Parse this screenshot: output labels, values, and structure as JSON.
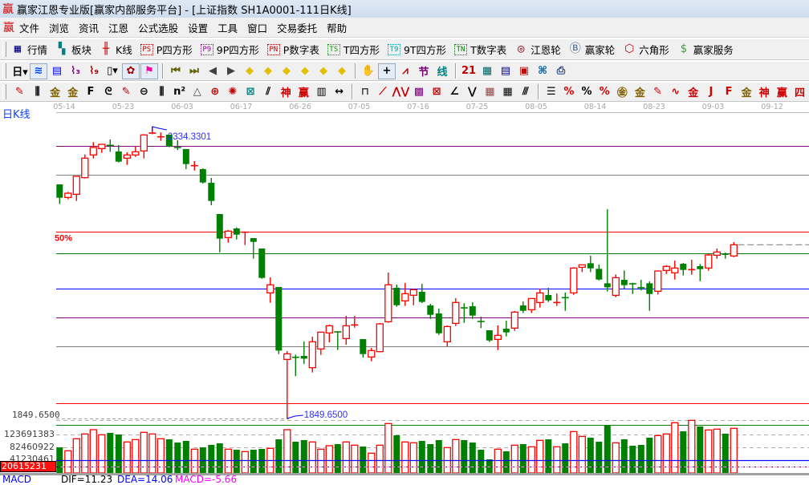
{
  "window": {
    "title": "赢家江恩专业版[赢家内部服务平台] - [上证指数  SH1A0001-111日K线]",
    "logo": "赢"
  },
  "menu": {
    "logo": "赢",
    "items": [
      "文件",
      "浏览",
      "资讯",
      "江恩",
      "公式选股",
      "设置",
      "工具",
      "窗口",
      "交易委托",
      "帮助"
    ]
  },
  "toolbar1": [
    {
      "icon": "quote-table-icon",
      "glyph": "▦",
      "color": "#000080",
      "label": "行情"
    },
    {
      "icon": "sector-blocks-icon",
      "glyph": "▚",
      "color": "#008080",
      "label": "板块"
    },
    {
      "icon": "candlestick-icon",
      "glyph": "╫",
      "color": "#d00000",
      "label": "K线"
    },
    {
      "icon": "ps-box-icon",
      "glyph": "PS",
      "color": "#c00000",
      "label": "P四方形"
    },
    {
      "icon": "p9-box-icon",
      "glyph": "P9",
      "color": "#a000a0",
      "label": "9P四方形"
    },
    {
      "icon": "pn-box-icon",
      "glyph": "PN",
      "color": "#c00000",
      "label": "P数字表"
    },
    {
      "icon": "ts-box-icon",
      "glyph": "TS",
      "color": "#00a000",
      "label": "T四方形"
    },
    {
      "icon": "t9-box-icon",
      "glyph": "T9",
      "color": "#00a0a0",
      "label": "9T四方形"
    },
    {
      "icon": "tn-box-icon",
      "glyph": "TN",
      "color": "#008000",
      "label": "T数字表"
    },
    {
      "icon": "gann-wheel-icon",
      "glyph": "◎",
      "color": "#800000",
      "label": "江恩轮"
    },
    {
      "icon": "big-wheel-icon",
      "glyph": "Ⓑ",
      "color": "#406080",
      "label": "赢家轮"
    },
    {
      "icon": "hexagon-icon",
      "glyph": "⬡",
      "color": "#c00000",
      "label": "六角形"
    },
    {
      "icon": "dollar-icon",
      "glyph": "$",
      "color": "#40a040",
      "label": "赢家服务"
    }
  ],
  "toolbar2": [
    {
      "icon": "period-day-dropdown-icon",
      "glyph": "日▾",
      "color": "#000"
    },
    {
      "icon": "wave-pattern-icon",
      "glyph": "≋",
      "color": "#0040ff",
      "active": true
    },
    {
      "icon": "notepad-icon",
      "glyph": "▤",
      "color": "#0000ff"
    },
    {
      "icon": "chart-3-icon",
      "glyph": "⌇₃",
      "color": "#800080"
    },
    {
      "icon": "chart-9-icon",
      "glyph": "⌇₉",
      "color": "#a00000"
    },
    {
      "icon": "candle-type-dropdown-icon",
      "glyph": "▯▾",
      "color": "#000"
    },
    {
      "icon": "pattern-sheet-icon",
      "glyph": "✿",
      "color": "#a00000",
      "active": true
    },
    {
      "icon": "flag-icon",
      "glyph": "⚑",
      "color": "#ff00a0",
      "active": true
    },
    {
      "sep": true
    },
    {
      "icon": "first-bar-icon",
      "glyph": "⏮",
      "color": "#606000"
    },
    {
      "icon": "last-bar-icon",
      "glyph": "⏭",
      "color": "#606000"
    },
    {
      "icon": "previous-icon",
      "glyph": "◀",
      "color": "#404040"
    },
    {
      "icon": "next-icon",
      "glyph": "▶",
      "color": "#404040"
    },
    {
      "icon": "diamond-left-icon",
      "glyph": "◆",
      "color": "#e0c000"
    },
    {
      "icon": "diamond-right-icon",
      "glyph": "◆",
      "color": "#e0c000"
    },
    {
      "icon": "diamond-horizontal-icon",
      "glyph": "◆",
      "color": "#e0c000"
    },
    {
      "icon": "diamond-collapse-icon",
      "glyph": "◆",
      "color": "#e0c000"
    },
    {
      "icon": "diamond-expand-icon",
      "glyph": "◆",
      "color": "#e0c000"
    },
    {
      "icon": "diamond-vertical-icon",
      "glyph": "◆",
      "color": "#e0c000"
    },
    {
      "sep": true
    },
    {
      "icon": "hand-icon",
      "glyph": "✋",
      "color": "#000"
    },
    {
      "icon": "crosshair-icon",
      "glyph": "+",
      "color": "#000",
      "active": true
    },
    {
      "icon": "draw-line-icon",
      "glyph": "⩘",
      "color": "#c00000"
    },
    {
      "icon": "jie-icon",
      "glyph": "节",
      "color": "#800080"
    },
    {
      "icon": "xian-icon",
      "glyph": "线",
      "color": "#008080"
    },
    {
      "sep": true
    },
    {
      "icon": "calendar-icon",
      "glyph": "21",
      "color": "#c00000"
    },
    {
      "icon": "calculator-icon",
      "glyph": "▦",
      "color": "#006060"
    },
    {
      "icon": "notes-icon",
      "glyph": "▤",
      "color": "#000080"
    },
    {
      "icon": "save-icon",
      "glyph": "▣",
      "color": "#c00000"
    },
    {
      "icon": "network-icon",
      "glyph": "⌘",
      "color": "#0060a0"
    },
    {
      "icon": "printer-icon",
      "glyph": "⎙",
      "color": "#204080"
    }
  ],
  "toolbar3": [
    {
      "icon": "pen-icon",
      "glyph": "✎",
      "color": "#c00000"
    },
    {
      "icon": "vertical-lines-icon",
      "glyph": "⫼",
      "color": "#000"
    },
    {
      "icon": "gold-lines-icon",
      "glyph": "金",
      "color": "#806000"
    },
    {
      "icon": "gold-lines-2-icon",
      "glyph": "金",
      "color": "#806000"
    },
    {
      "icon": "f-lines-icon",
      "glyph": "F",
      "color": "#000"
    },
    {
      "icon": "spiral-lines-icon",
      "glyph": "ᘓ",
      "color": "#000"
    },
    {
      "icon": "pen-ruler-icon",
      "glyph": "✎",
      "color": "#c00000"
    },
    {
      "icon": "circle-ruler-icon",
      "glyph": "⊖",
      "color": "#000"
    },
    {
      "icon": "parallel-lines-icon",
      "glyph": "⫼",
      "color": "#000"
    },
    {
      "icon": "n-squared-icon",
      "glyph": "n²",
      "color": "#000"
    },
    {
      "icon": "triangle-icon",
      "glyph": "△",
      "color": "#404040"
    },
    {
      "icon": "circle-target-icon",
      "glyph": "⊕",
      "color": "#c00000"
    },
    {
      "icon": "radial-web-icon",
      "glyph": "✺",
      "color": "#c00000"
    },
    {
      "icon": "square-web-icon",
      "glyph": "⊠",
      "color": "#008080"
    },
    {
      "icon": "slant-lines-icon",
      "glyph": "⫽",
      "color": "#000"
    },
    {
      "icon": "shen-lines-icon",
      "glyph": "神",
      "color": "#d00000"
    },
    {
      "icon": "ying-lines-icon",
      "glyph": "赢",
      "color": "#d00000"
    },
    {
      "icon": "grid-123-icon",
      "glyph": "▥",
      "color": "#000"
    },
    {
      "icon": "span-icon",
      "glyph": "↔",
      "color": "#000"
    },
    {
      "sep": true
    },
    {
      "icon": "box-icon",
      "glyph": "⊓",
      "color": "#404040"
    },
    {
      "icon": "fan-icon",
      "glyph": "⟋",
      "color": "#d00000"
    },
    {
      "icon": "zigzag-icon",
      "glyph": "⋀⋁",
      "color": "#c00000"
    },
    {
      "icon": "gann-square-icon",
      "glyph": "▩",
      "color": "#800080"
    },
    {
      "icon": "gann-fan-box-icon",
      "glyph": "⊠",
      "color": "#c00000"
    },
    {
      "icon": "angle-fan-icon",
      "glyph": "∠",
      "color": "#000"
    },
    {
      "icon": "vee-icon",
      "glyph": "⋁",
      "color": "#000"
    },
    {
      "icon": "grid-icon",
      "glyph": "▦",
      "color": "#a04040"
    },
    {
      "icon": "grid-arrow-icon",
      "glyph": "▦",
      "color": "#000"
    },
    {
      "icon": "slant-grid-icon",
      "glyph": "⫻",
      "color": "#000"
    },
    {
      "sep": true
    },
    {
      "icon": "list-lines-icon",
      "glyph": "☰",
      "color": "#000"
    },
    {
      "icon": "percent-fan-icon",
      "glyph": "%",
      "color": "#d00000"
    },
    {
      "icon": "percent-icon",
      "glyph": "%",
      "color": "#000"
    },
    {
      "icon": "percent-lines-icon",
      "glyph": "%",
      "color": "#d00000"
    },
    {
      "icon": "gold-circle-icon",
      "glyph": "㊎",
      "color": "#806000"
    },
    {
      "icon": "gold-level-icon",
      "glyph": "金",
      "color": "#806000"
    },
    {
      "icon": "pen-level-icon",
      "glyph": "✎",
      "color": "#c00000"
    },
    {
      "icon": "wave-level-icon",
      "glyph": "∿",
      "color": "#d00000"
    },
    {
      "icon": "gold-red-level-icon",
      "glyph": "金",
      "color": "#d00000"
    },
    {
      "icon": "j-angle-icon",
      "glyph": "J",
      "color": "#d00000"
    },
    {
      "icon": "f-angle-icon",
      "glyph": "F",
      "color": "#d00000"
    },
    {
      "icon": "gold-angle-icon",
      "glyph": "金",
      "color": "#806000"
    },
    {
      "icon": "shen-angle-icon",
      "glyph": "神",
      "color": "#d00000"
    },
    {
      "icon": "ying-angle-icon",
      "glyph": "赢",
      "color": "#d00000"
    },
    {
      "icon": "four-angle-icon",
      "glyph": "四",
      "color": "#d00000"
    }
  ],
  "x_axis": {
    "labels": [
      "05-14",
      "05-23",
      "06-03",
      "06-17",
      "06-26",
      "07-05",
      "07-16",
      "07-25",
      "08-05",
      "08-14",
      "08-23",
      "09-03",
      "09-12"
    ]
  },
  "panel_label": "日K线",
  "colors": {
    "up": "#ff0000",
    "down": "#008000",
    "hi_lo_label": "#3030ff",
    "bg": "#ffffff"
  },
  "chart_data": {
    "type": "candlestick",
    "title": "日K线",
    "symbol": "SH1A0001",
    "ohlc_order": [
      "open",
      "high",
      "low",
      "close"
    ],
    "candles": [
      [
        2238.5,
        2238.5,
        2206.1,
        2216.3
      ],
      [
        2216.7,
        2226.0,
        2213.6,
        2223.8
      ],
      [
        2222.0,
        2251.8,
        2210.9,
        2251.8
      ],
      [
        2249.6,
        2288.2,
        2248.2,
        2282.0
      ],
      [
        2287.3,
        2308.6,
        2281.5,
        2299.7
      ],
      [
        2297.9,
        2305.0,
        2290.8,
        2305.0
      ],
      [
        2303.7,
        2313.0,
        2292.6,
        2302.8
      ],
      [
        2293.1,
        2303.7,
        2274.9,
        2276.2
      ],
      [
        2282.0,
        2291.7,
        2270.9,
        2287.3
      ],
      [
        2287.3,
        2301.5,
        2284.2,
        2292.6
      ],
      [
        2294.0,
        2321.9,
        2281.5,
        2320.6
      ],
      [
        2323.2,
        2334.33,
        2321.9,
        2324.1
      ],
      [
        2317.0,
        2324.6,
        2310.8,
        2317.9
      ],
      [
        2321.0,
        2321.0,
        2300.2,
        2301.5
      ],
      [
        2300.2,
        2311.7,
        2295.3,
        2299.3
      ],
      [
        2297.1,
        2297.1,
        2263.8,
        2272.2
      ],
      [
        2269.1,
        2277.1,
        2261.5,
        2270.0
      ],
      [
        2263.8,
        2265.1,
        2239.8,
        2241.6
      ],
      [
        2241.1,
        2249.1,
        2203.8,
        2210.9
      ],
      [
        2189.2,
        2189.2,
        2125.3,
        2148.4
      ],
      [
        2150.1,
        2162.6,
        2141.7,
        2160.8
      ],
      [
        2165.2,
        2167.0,
        2147.0,
        2155.0
      ],
      [
        2158.6,
        2160.3,
        2137.7,
        2159.5
      ],
      [
        2149.2,
        2149.2,
        2115.1,
        2143.0
      ],
      [
        2131.9,
        2131.9,
        2081.8,
        2083.1
      ],
      [
        2058.2,
        2084.0,
        2041.8,
        2071.6
      ],
      [
        2068.0,
        2068.0,
        1956.6,
        1962.4
      ],
      [
        1947.7,
        1961.5,
        1849.65,
        1957.0
      ],
      [
        1951.7,
        1955.7,
        1920.0,
        1950.8
      ],
      [
        1953.5,
        1977.5,
        1940.2,
        1949.0
      ],
      [
        1934.0,
        1985.4,
        1926.0,
        1977.0
      ],
      [
        1965.0,
        1993.0,
        1955.3,
        1993.0
      ],
      [
        1991.7,
        2005.4,
        1976.1,
        2003.6
      ],
      [
        1994.3,
        1994.3,
        1963.3,
        1992.6
      ],
      [
        1982.3,
        2020.1,
        1972.1,
        2003.6
      ],
      [
        2004.5,
        2020.1,
        2000.5,
        2005.4
      ],
      [
        1981.5,
        1981.5,
        1950.8,
        1956.6
      ],
      [
        1951.7,
        1966.8,
        1944.6,
        1962.4
      ],
      [
        1960.6,
        2008.1,
        1959.7,
        2006.8
      ],
      [
        2010.3,
        2092.0,
        2008.5,
        2071.6
      ],
      [
        2066.7,
        2072.0,
        2035.2,
        2037.8
      ],
      [
        2044.9,
        2074.7,
        2036.5,
        2056.9
      ],
      [
        2054.3,
        2065.3,
        2037.8,
        2063.6
      ],
      [
        2060.0,
        2073.3,
        2041.4,
        2043.2
      ],
      [
        2037.4,
        2040.0,
        2015.2,
        2021.8
      ],
      [
        2024.1,
        2032.1,
        1988.6,
        1991.2
      ],
      [
        1977.0,
        2004.1,
        1969.0,
        2002.3
      ],
      [
        2007.6,
        2049.4,
        2003.2,
        2042.3
      ],
      [
        2033.8,
        2041.0,
        2008.5,
        2032.9
      ],
      [
        2036.1,
        2042.7,
        2015.2,
        2020.5
      ],
      [
        2011.2,
        2018.7,
        1999.7,
        2010.3
      ],
      [
        1996.1,
        1996.1,
        1976.6,
        1979.2
      ],
      [
        1981.0,
        2004.1,
        1963.3,
        1987.7
      ],
      [
        1998.8,
        2012.1,
        1985.9,
        1992.6
      ],
      [
        1999.7,
        2028.1,
        1995.2,
        2026.3
      ],
      [
        2037.3,
        2044.0,
        2024.9,
        2028.5
      ],
      [
        2030.2,
        2048.9,
        2024.9,
        2048.9
      ],
      [
        2042.2,
        2065.3,
        2033.8,
        2058.2
      ],
      [
        2054.7,
        2066.6,
        2043.1,
        2045.8
      ],
      [
        2041.8,
        2057.3,
        2036.5,
        2042.7
      ],
      [
        2050.7,
        2058.7,
        2028.5,
        2049.8
      ],
      [
        2058.2,
        2100.8,
        2055.1,
        2099.5
      ],
      [
        2100.8,
        2104.8,
        2092.8,
        2104.8
      ],
      [
        2107.5,
        2119.9,
        2092.8,
        2099.0
      ],
      [
        2098.2,
        2105.3,
        2079.1,
        2080.4
      ],
      [
        2074.2,
        2197.1,
        2060.4,
        2067.5
      ],
      [
        2054.2,
        2088.8,
        2051.1,
        2083.5
      ],
      [
        2080.0,
        2095.5,
        2064.9,
        2071.1
      ],
      [
        2073.8,
        2075.1,
        2056.4,
        2072.9
      ],
      [
        2068.0,
        2080.0,
        2062.2,
        2065.8
      ],
      [
        2074.2,
        2077.3,
        2028.5,
        2056.4
      ],
      [
        2060.9,
        2095.5,
        2055.5,
        2094.6
      ],
      [
        2095.5,
        2104.1,
        2089.7,
        2102.2
      ],
      [
        2091.5,
        2111.9,
        2080.4,
        2099.5
      ],
      [
        2106.6,
        2107.9,
        2087.1,
        2096.4
      ],
      [
        2096.4,
        2113.3,
        2088.4,
        2097.3
      ],
      [
        2102.6,
        2106.2,
        2077.7,
        2097.7
      ],
      [
        2099.5,
        2123.0,
        2095.1,
        2121.2
      ],
      [
        2120.8,
        2131.9,
        2115.0,
        2126.1
      ],
      [
        2123.0,
        2125.2,
        2115.0,
        2122.1
      ],
      [
        2119.5,
        2142.6,
        2117.7,
        2138.1
      ]
    ],
    "volume": [
      82500000,
      71300000,
      110000000,
      125400000,
      139200000,
      122800000,
      128900000,
      123700000,
      99600000,
      107400000,
      130600000,
      125400000,
      110000000,
      108200000,
      97900000,
      103100000,
      76500000,
      82500000,
      90200000,
      95300000,
      76500000,
      74700000,
      68700000,
      74700000,
      77300000,
      79000000,
      108200000,
      139200000,
      100500000,
      105700000,
      99600000,
      76500000,
      87600000,
      92800000,
      99600000,
      89300000,
      85000000,
      63600000,
      89300000,
      158900000,
      121100000,
      99600000,
      97100000,
      103100000,
      92800000,
      105700000,
      81600000,
      107400000,
      105700000,
      97900000,
      74700000,
      43800000,
      76500000,
      69600000,
      89300000,
      92800000,
      84200000,
      104800000,
      108200000,
      84200000,
      95300000,
      133100000,
      117700000,
      113400000,
      100500000,
      154600000,
      97100000,
      108200000,
      87600000,
      90200000,
      113400000,
      120300000,
      125400000,
      161500000,
      134000000,
      169200000,
      149500000,
      138300000,
      140900000,
      126300000,
      143500000
    ],
    "high_label": "2334.3301",
    "low_label": "1849.6500",
    "price_axis_label": "1849.6500",
    "levels": [
      {
        "price": 2302.4,
        "color": "#800080"
      },
      {
        "price": 2254.4,
        "color": "#808080"
      },
      {
        "price": 2159.9,
        "color": "#ff0000",
        "label": "50%"
      },
      {
        "price": 2123.9,
        "color": "#008000"
      },
      {
        "price": 2065.3,
        "color": "#0000ff"
      },
      {
        "price": 2017.4,
        "color": "#800080"
      },
      {
        "price": 1969.4,
        "color": "#808080"
      },
      {
        "price": 1874.9,
        "color": "#ff0000"
      },
      {
        "price": 1838.9,
        "color": "#008000"
      }
    ],
    "volume_axis": {
      "ticks": [
        "123691383",
        "82460922",
        "41230461"
      ],
      "highlight": "20615231"
    },
    "grid": false
  },
  "indicator": {
    "name": "MACD",
    "dif": "DIF=11.23",
    "dea": "DEA=14.06",
    "macd": "MACD=-5.66"
  }
}
